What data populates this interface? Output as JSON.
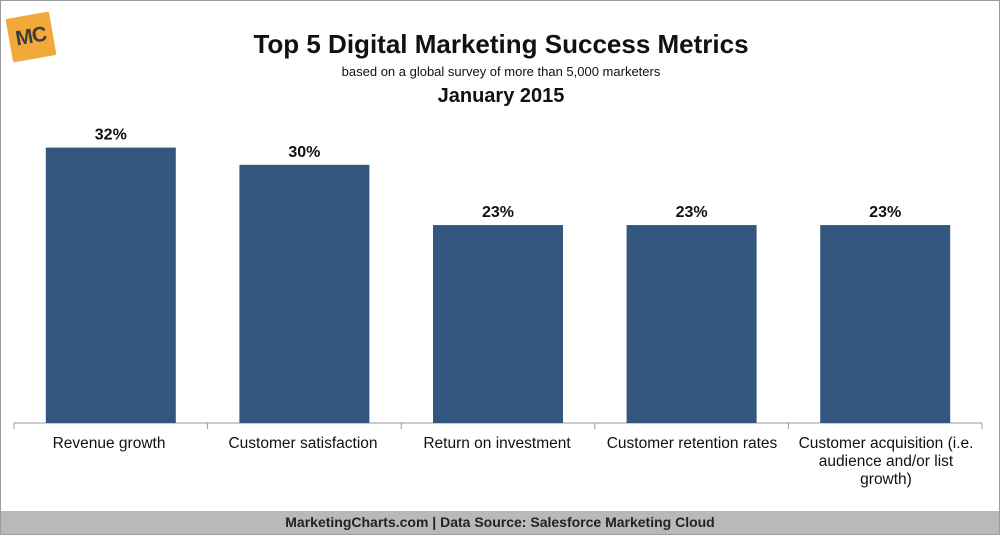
{
  "logo": {
    "text": "MC"
  },
  "footer": {
    "text": "MarketingCharts.com | Data Source: Salesforce Marketing Cloud"
  },
  "chart_data": {
    "type": "bar",
    "title": "Top 5 Digital Marketing Success Metrics",
    "subtitle": "based on a global survey of more than 5,000 marketers",
    "date_label": "January 2015",
    "categories": [
      "Revenue growth",
      "Customer satisfaction",
      "Return on investment",
      "Customer retention rates",
      "Customer acquisition (i.e. audience and/or list growth)"
    ],
    "values": [
      32,
      30,
      23,
      23,
      23
    ],
    "value_labels": [
      "32%",
      "30%",
      "23%",
      "23%",
      "23%"
    ],
    "ylim": [
      0,
      33
    ],
    "bar_color": "#33567f",
    "xlabel": "",
    "ylabel": "",
    "grid": false
  }
}
